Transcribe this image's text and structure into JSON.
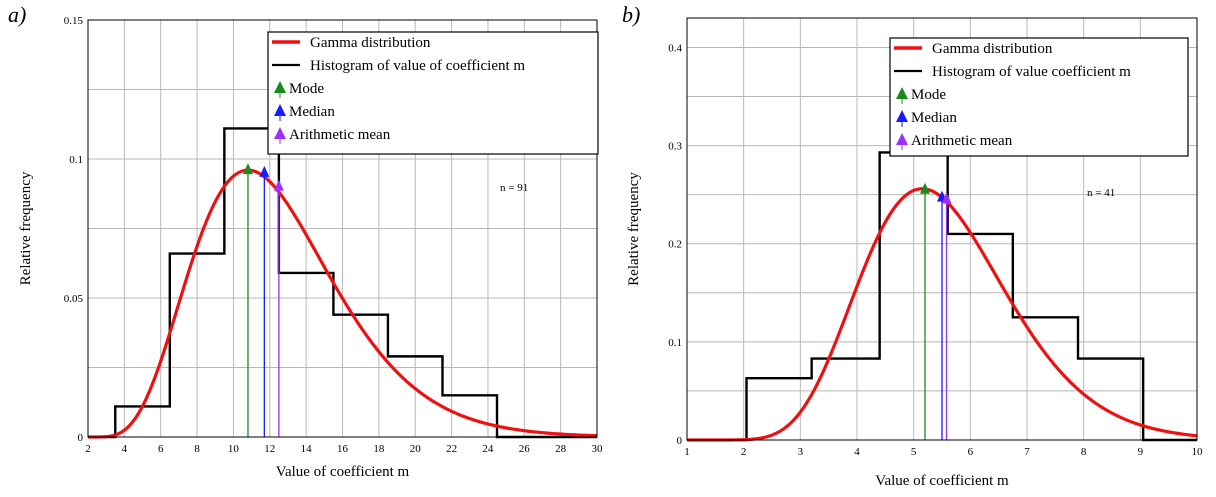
{
  "chart_data": [
    {
      "panel": "a)",
      "type": "line",
      "xlabel": "Value of coefficient m",
      "ylabel": "Relative frequency",
      "xlim": [
        2,
        30
      ],
      "ylim": [
        0,
        0.15
      ],
      "x_ticks": [
        "2",
        "4",
        "6",
        "8",
        "10",
        "12",
        "14",
        "16",
        "18",
        "20",
        "22",
        "24",
        "26",
        "28",
        "30"
      ],
      "y_ticks": [
        "0",
        "0.05",
        "0.1",
        "0.15"
      ],
      "annotation": "n = 91",
      "legend": [
        "Gamma distribution",
        "Histogram of value of coefficient m",
        "Mode",
        "Median",
        "Arithmetic mean"
      ],
      "legend_position": "top-right",
      "grid": true,
      "histogram": {
        "edges": [
          3.5,
          6.5,
          9.5,
          12.5,
          15.5,
          18.5,
          21.5,
          24.5
        ],
        "values": [
          0.011,
          0.066,
          0.111,
          0.059,
          0.044,
          0.029,
          0.015
        ]
      },
      "gamma_curve": {
        "peak_x": 10.8,
        "peak_y": 0.096,
        "mean_x": 12.5,
        "x_start": 2.0
      },
      "markers": [
        {
          "name": "Mode",
          "x": 10.8,
          "y": 0.096,
          "color": "#1a8a1a"
        },
        {
          "name": "Median",
          "x": 11.7,
          "y": 0.095,
          "color": "#1a1aff"
        },
        {
          "name": "Arithmetic mean",
          "x": 12.5,
          "y": 0.09,
          "color": "#9b30ff"
        }
      ]
    },
    {
      "panel": "b)",
      "type": "line",
      "xlabel": "Value of coefficient m",
      "ylabel": "Relative frequency",
      "xlim": [
        1,
        10
      ],
      "ylim": [
        0,
        0.43
      ],
      "x_ticks": [
        "1",
        "2",
        "3",
        "4",
        "5",
        "6",
        "7",
        "8",
        "9",
        "10"
      ],
      "y_ticks": [
        "0",
        "0.1",
        "0.2",
        "0.3",
        "0.4"
      ],
      "annotation": "n = 41",
      "legend": [
        "Gamma distribution",
        "Histogram of value coefficient m",
        "Mode",
        "Median",
        "Arithmetic mean"
      ],
      "legend_position": "top-right",
      "grid": true,
      "histogram": {
        "edges": [
          2.05,
          3.2,
          4.4,
          5.6,
          6.75,
          7.9,
          9.05,
          10.0
        ],
        "values": [
          0.063,
          0.083,
          0.293,
          0.21,
          0.125,
          0.083,
          0.0
        ]
      },
      "gamma_curve": {
        "peak_x": 5.15,
        "peak_y": 0.256,
        "mean_x": 5.55,
        "x_start": 1.0
      },
      "markers": [
        {
          "name": "Mode",
          "x": 5.2,
          "y": 0.255,
          "color": "#1a8a1a"
        },
        {
          "name": "Median",
          "x": 5.5,
          "y": 0.247,
          "color": "#1a1aff"
        },
        {
          "name": "Arithmetic mean",
          "x": 5.58,
          "y": 0.245,
          "color": "#9b30ff"
        }
      ]
    }
  ]
}
